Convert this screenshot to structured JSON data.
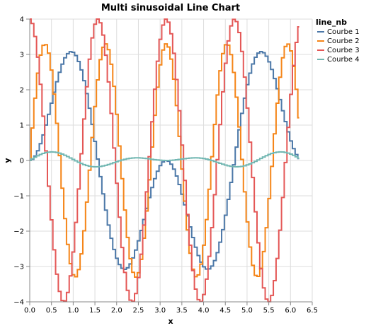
{
  "chart_data": {
    "type": "line",
    "interpolation": "step",
    "title": "Multi sinusoidal Line Chart",
    "xlabel": "x",
    "ylabel": "y",
    "xlim": [
      0,
      6.5
    ],
    "ylim": [
      -4,
      4
    ],
    "x_ticks": [
      "0.0",
      "0.5",
      "1.0",
      "1.5",
      "2.0",
      "2.5",
      "3.0",
      "3.5",
      "4.0",
      "4.5",
      "5.0",
      "5.5",
      "6.0",
      "6.5"
    ],
    "y_ticks": [
      "−4",
      "−3",
      "−2",
      "−1",
      "0",
      "1",
      "2",
      "3",
      "4"
    ],
    "grid": true,
    "legend": {
      "title": "line_nb",
      "position": "right"
    },
    "series": [
      {
        "name": "Courbe 1",
        "color": "#4c78a8",
        "x_start": 0,
        "x_end": 6.2,
        "samples": 100,
        "amplitude": 4,
        "frequency": 2,
        "kind": "sin-sin"
      },
      {
        "name": "Courbe 2",
        "color": "#f58518",
        "x_start": 0,
        "x_end": 6.2,
        "samples": 100,
        "amplitude": 3.3,
        "frequency": 4.5,
        "kind": "sin"
      },
      {
        "name": "Courbe 3",
        "color": "#e45756",
        "x_start": 0,
        "x_end": 6.2,
        "samples": 100,
        "amplitude": 4,
        "frequency": 4,
        "kind": "cos"
      },
      {
        "name": "Courbe 4",
        "color": "#72b7b2",
        "x_start": 0,
        "x_end": 6.2,
        "samples": 100,
        "amplitude": 0.25,
        "frequency": 3,
        "kind": "sin-slow"
      }
    ]
  }
}
